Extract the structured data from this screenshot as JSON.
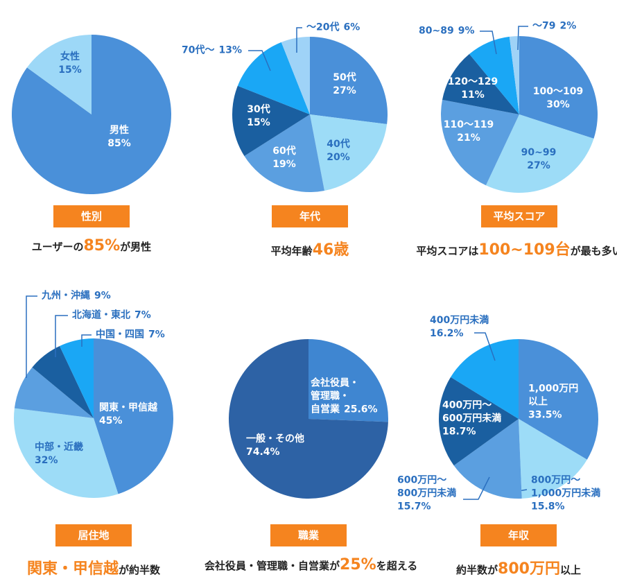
{
  "chart_data": [
    {
      "type": "pie",
      "label": "性別",
      "categories": [
        "男性",
        "女性"
      ],
      "values": [
        85,
        15
      ],
      "value_labels": [
        "85%",
        "15%"
      ],
      "colors": [
        "#4a90d9",
        "#9dd8f7"
      ],
      "caption": [
        {
          "text": "ユーザーの"
        },
        {
          "text": "85%",
          "color": "#f5841f"
        },
        {
          "text": "が男性"
        }
      ]
    },
    {
      "type": "pie",
      "label": "年代",
      "categories": [
        "50代",
        "40代",
        "60代",
        "30代",
        "70代〜",
        "〜20代"
      ],
      "values": [
        27,
        20,
        19,
        15,
        13,
        6
      ],
      "value_labels": [
        "27%",
        "20%",
        "19%",
        "15%",
        "13%",
        "6%"
      ],
      "colors": [
        "#4a90d9",
        "#9ddcf7",
        "#5b9fe0",
        "#1a5fa0",
        "#1aa7f5",
        "#9fd3f7"
      ],
      "caption": [
        {
          "text": "平均年齢"
        },
        {
          "text": "46歳",
          "color": "#f5841f"
        }
      ]
    },
    {
      "type": "pie",
      "label": "平均スコア",
      "categories": [
        "100〜109",
        "90~99",
        "110〜119",
        "120〜129",
        "80~89",
        "〜79"
      ],
      "values": [
        30,
        27,
        21,
        11,
        9,
        2
      ],
      "value_labels": [
        "30%",
        "27%",
        "21%",
        "11%",
        "9%",
        "2%"
      ],
      "colors": [
        "#4a90d9",
        "#9ddcf7",
        "#5b9fe0",
        "#1a5fa0",
        "#1aa7f5",
        "#9fd3f7"
      ],
      "caption": [
        {
          "text": "平均スコアは"
        },
        {
          "text": "100~109台",
          "color": "#f5841f"
        },
        {
          "text": "が最も多い"
        }
      ]
    },
    {
      "type": "pie",
      "label": "居住地",
      "categories": [
        "関東・甲信越",
        "中部・近畿",
        "九州・沖縄",
        "北海道・東北",
        "中国・四国"
      ],
      "values": [
        45,
        32,
        9,
        7,
        7
      ],
      "value_labels": [
        "45%",
        "32%",
        "9%",
        "7%",
        "7%"
      ],
      "colors": [
        "#4a90d9",
        "#9ddcf7",
        "#5b9fe0",
        "#1a5fa0",
        "#1aa7f5"
      ],
      "caption": [
        {
          "text": "関東・甲信越",
          "color": "#f5841f"
        },
        {
          "text": "が約半数"
        }
      ]
    },
    {
      "type": "pie",
      "label": "職業",
      "categories": [
        "会社役員・\n管理職・\n自営業",
        "一般・その他"
      ],
      "values": [
        25.6,
        74.4
      ],
      "value_labels": [
        "25.6%",
        "74.4%"
      ],
      "colors": [
        "#3f86d1",
        "#2d62a5"
      ],
      "caption": [
        {
          "text": "会社役員・管理職・自営業が"
        },
        {
          "text": "25%",
          "color": "#f5841f"
        },
        {
          "text": "を超える"
        }
      ]
    },
    {
      "type": "pie",
      "label": "年収",
      "categories": [
        "1,000万円\n以上",
        "800万円〜\n1,000万円未満",
        "600万円〜\n800万円未満",
        "400万円〜\n600万円未満",
        "400万円未満"
      ],
      "values": [
        33.5,
        15.8,
        15.7,
        18.7,
        16.2
      ],
      "value_labels": [
        "33.5%",
        "15.8%",
        "15.7%",
        "18.7%",
        "16.2%"
      ],
      "colors": [
        "#4a90d9",
        "#9ddcf7",
        "#5b9fe0",
        "#1a5fa0",
        "#1aa7f5"
      ],
      "caption": [
        {
          "text": "約半数が"
        },
        {
          "text": "800万円",
          "color": "#f5841f"
        },
        {
          "text": "以上"
        }
      ]
    }
  ]
}
